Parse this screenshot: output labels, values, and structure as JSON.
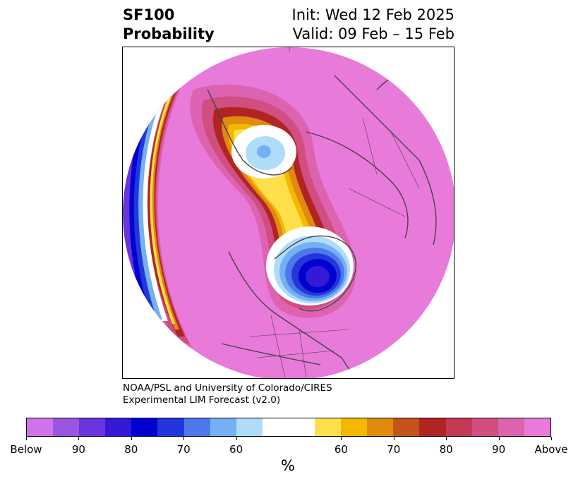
{
  "title": {
    "left_line1": "SF100",
    "left_line2": "Probability",
    "right_line1": "Init: Wed 12 Feb 2025",
    "right_line2": "Valid: 09 Feb – 15 Feb"
  },
  "credit": {
    "line1": "NOAA/PSL and University of Colorado/CIRES",
    "line2": "Experimental LIM Forecast (v2.0)"
  },
  "colorbar": {
    "unit": "%",
    "segments": [
      {
        "color": "#d272ea"
      },
      {
        "color": "#9b55e0"
      },
      {
        "color": "#6a35dc"
      },
      {
        "color": "#3419d6"
      },
      {
        "color": "#0000d0"
      },
      {
        "color": "#2236dc"
      },
      {
        "color": "#4d78ea"
      },
      {
        "color": "#74b0f4"
      },
      {
        "color": "#afdcf9"
      },
      {
        "color": "#ffffff"
      },
      {
        "color": "#ffe04a"
      },
      {
        "color": "#f5b800"
      },
      {
        "color": "#e08a10"
      },
      {
        "color": "#c4541a"
      },
      {
        "color": "#b02424"
      },
      {
        "color": "#c23a55"
      },
      {
        "color": "#d04e80"
      },
      {
        "color": "#dd62b0"
      },
      {
        "color": "#e87ada"
      }
    ],
    "tick_labels": [
      "Below",
      "90",
      "80",
      "70",
      "60",
      "60",
      "70",
      "80",
      "90",
      "Above"
    ]
  },
  "map": {
    "background_color": "#e87ada",
    "below_colors": [
      "#0000d0",
      "#2236dc",
      "#4d78ea",
      "#74b0f4",
      "#afdcf9"
    ],
    "above_colors": [
      "#dd62b0",
      "#d04e80",
      "#c23a55",
      "#b02424",
      "#c4541a",
      "#e08a10",
      "#f5b800",
      "#ffe04a"
    ],
    "coastline_color": "#444444"
  }
}
